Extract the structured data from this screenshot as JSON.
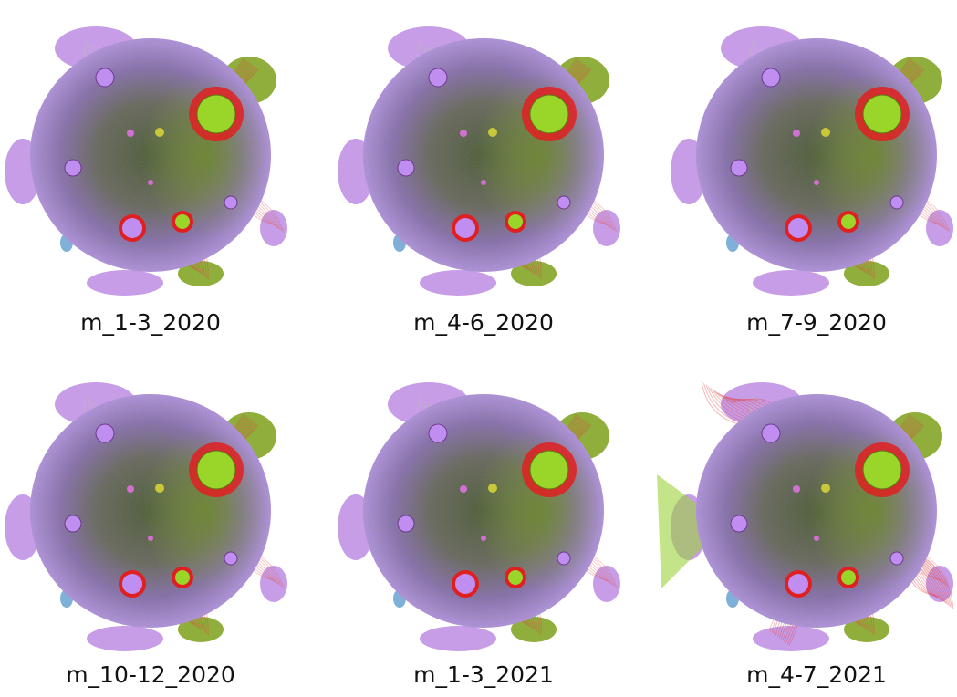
{
  "panels": [
    {
      "label": "m_1-3_2020"
    },
    {
      "label": "m_4-6_2020"
    },
    {
      "label": "m_7-9_2020"
    },
    {
      "label": "m_10-12_2020"
    },
    {
      "label": "m_1-3_2021"
    },
    {
      "label": "m_4-7_2021"
    }
  ]
}
